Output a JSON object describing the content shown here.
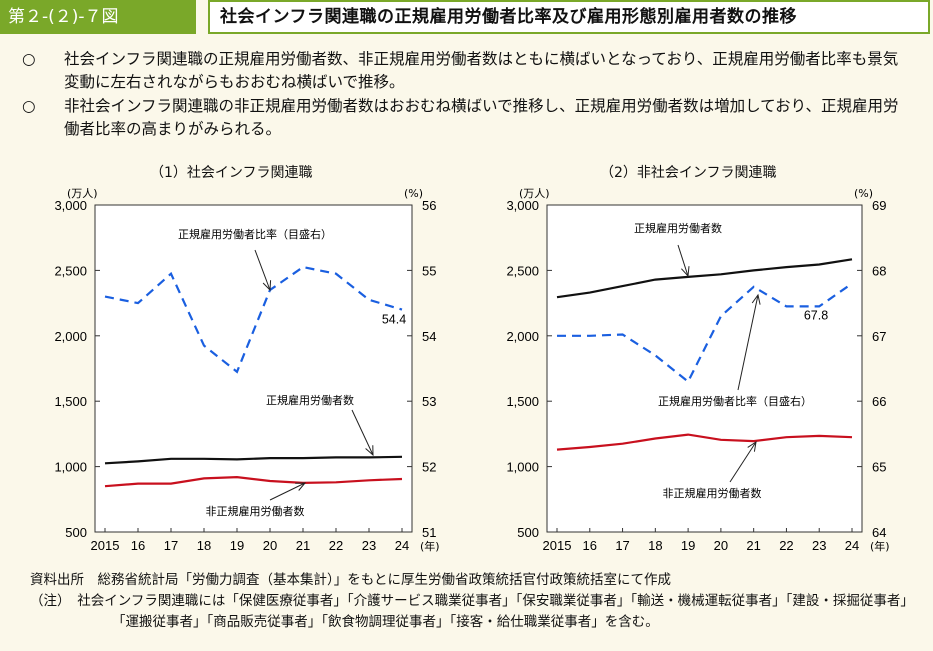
{
  "header": {
    "figure_label": "第２-(２)-７図",
    "title": "社会インフラ関連職の正規雇用労働者比率及び雇用形態別雇用者数の推移"
  },
  "bullets": [
    {
      "mark": "○",
      "text": "社会インフラ関連職の正規雇用労働者数、非正規雇用労働者数はともに横ばいとなっており、正規雇用労働者比率も景気変動に左右されながらもおおむね横ばいで推移。"
    },
    {
      "mark": "○",
      "text": "非社会インフラ関連職の非正規雇用労働者数はおおむね横ばいで推移し、正規雇用労働者数は増加しており、正規雇用労働者比率の高まりがみられる。"
    }
  ],
  "footer": {
    "source": "資料出所　総務省統計局「労働力調査（基本集計）」をもとに厚生労働省政策統括官付政策統括室にて作成",
    "note": "（注）　社会インフラ関連職には「保健医療従事者」「介護サービス職業従事者」「保安職業従事者」「輸送・機械運転従事者」「建設・採掘従事者」「運搬従事者」「商品販売従事者」「飲食物調理従事者」「接客・給仕職業従事者」を含む。"
  },
  "colors": {
    "regular": "#111111",
    "nonregular": "#c8101e",
    "ratio": "#1a5fe0",
    "accent": "#7aa829"
  },
  "chart_data": [
    {
      "type": "line",
      "title": "（1）社会インフラ関連職",
      "x": [
        "2015",
        "16",
        "17",
        "18",
        "19",
        "20",
        "21",
        "22",
        "23",
        "24"
      ],
      "xunit": "(年)",
      "yleft_unit": "(万人)",
      "yright_unit": "(%)",
      "yleft_ticks": [
        "500",
        "1,000",
        "1,500",
        "2,000",
        "2,500",
        "3,000"
      ],
      "yright_ticks": [
        "51",
        "52",
        "53",
        "54",
        "55",
        "56"
      ],
      "ylim_left": [
        500,
        3000
      ],
      "ylim_right": [
        51,
        56
      ],
      "series": [
        {
          "name": "正規雇用労働者数",
          "axis": "left",
          "style": "solid",
          "values": [
            1025,
            1040,
            1060,
            1060,
            1055,
            1065,
            1065,
            1070,
            1070,
            1075
          ]
        },
        {
          "name": "非正規雇用労働者数",
          "axis": "left",
          "style": "solid",
          "values": [
            850,
            870,
            870,
            910,
            920,
            890,
            875,
            880,
            895,
            905
          ]
        },
        {
          "name": "正規雇用労働者比率（目盛右）",
          "axis": "right",
          "style": "dashed",
          "values": [
            54.6,
            54.5,
            54.95,
            53.85,
            53.45,
            54.7,
            55.05,
            54.95,
            54.55,
            54.4
          ]
        }
      ],
      "annotations": [
        {
          "text": "54.4"
        }
      ]
    },
    {
      "type": "line",
      "title": "（2）非社会インフラ関連職",
      "x": [
        "2015",
        "16",
        "17",
        "18",
        "19",
        "20",
        "21",
        "22",
        "23",
        "24"
      ],
      "xunit": "(年)",
      "yleft_unit": "(万人)",
      "yright_unit": "(%)",
      "yleft_ticks": [
        "500",
        "1,000",
        "1,500",
        "2,000",
        "2,500",
        "3,000"
      ],
      "yright_ticks": [
        "64",
        "65",
        "66",
        "67",
        "68",
        "69"
      ],
      "ylim_left": [
        500,
        3000
      ],
      "ylim_right": [
        64,
        69
      ],
      "series": [
        {
          "name": "正規雇用労働者数",
          "axis": "left",
          "style": "solid",
          "values": [
            2295,
            2330,
            2380,
            2430,
            2450,
            2470,
            2500,
            2525,
            2545,
            2585
          ]
        },
        {
          "name": "非正規雇用労働者数",
          "axis": "left",
          "style": "solid",
          "values": [
            1130,
            1150,
            1175,
            1215,
            1245,
            1205,
            1195,
            1225,
            1235,
            1225
          ]
        },
        {
          "name": "正規雇用労働者比率（目盛右）",
          "axis": "right",
          "style": "dashed",
          "values": [
            67.0,
            67.0,
            67.02,
            66.7,
            66.3,
            67.3,
            67.75,
            67.45,
            67.45,
            67.8
          ]
        }
      ],
      "annotations": [
        {
          "text": "67.8"
        }
      ]
    }
  ]
}
